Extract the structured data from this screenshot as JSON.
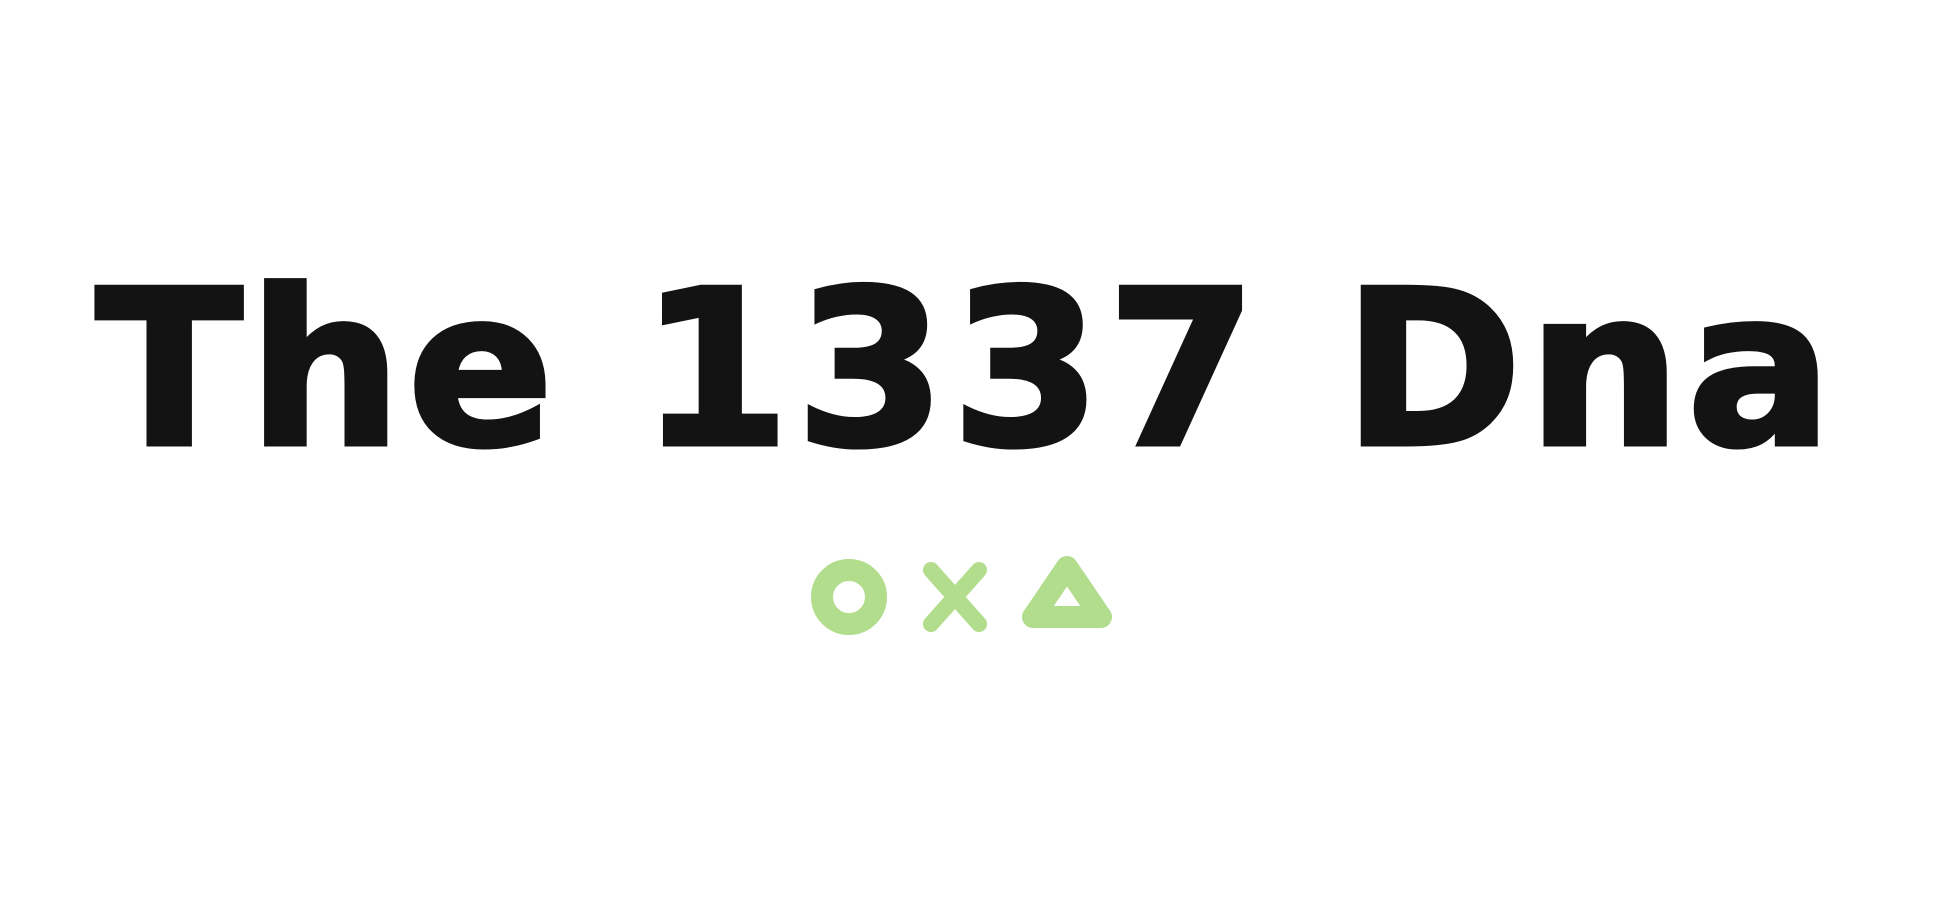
{
  "headline": {
    "text": "The 1337 Dna",
    "color": "#131313"
  },
  "symbols": {
    "color": "#b1dd8c",
    "items": [
      "circle-icon",
      "cross-icon",
      "triangle-icon"
    ]
  }
}
